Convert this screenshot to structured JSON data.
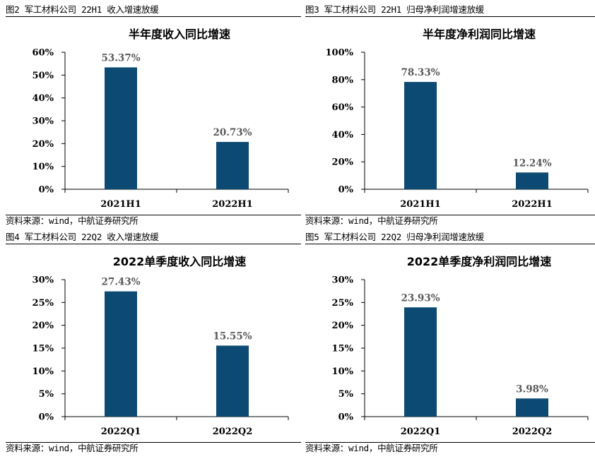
{
  "source_text": "资料来源：wind，中航证券研究所",
  "colors": {
    "bar": "#0d4a73",
    "axis": "#000000",
    "label": "#595959"
  },
  "figures": [
    {
      "caption": "图2  军工材料公司 22H1 收入增速放缓",
      "chart_data": {
        "type": "bar",
        "title": "半年度收入同比增速",
        "categories": [
          "2021H1",
          "2022H1"
        ],
        "values": [
          53.37,
          20.73
        ],
        "data_labels": [
          "53.37%",
          "20.73%"
        ],
        "yticks": [
          "0%",
          "10%",
          "20%",
          "30%",
          "40%",
          "50%",
          "60%"
        ],
        "ylim": [
          0,
          60
        ],
        "xlabel": "",
        "ylabel": "",
        "grid": false
      }
    },
    {
      "caption": "图3  军工材料公司 22H1 归母净利润增速放缓",
      "chart_data": {
        "type": "bar",
        "title": "半年度净利润同比增速",
        "categories": [
          "2021H1",
          "2022H1"
        ],
        "values": [
          78.33,
          12.24
        ],
        "data_labels": [
          "78.33%",
          "12.24%"
        ],
        "yticks": [
          "0%",
          "20%",
          "40%",
          "60%",
          "80%",
          "100%"
        ],
        "ylim": [
          0,
          100
        ],
        "xlabel": "",
        "ylabel": "",
        "grid": false
      }
    },
    {
      "caption": "图4  军工材料公司 22Q2 收入增速放缓",
      "chart_data": {
        "type": "bar",
        "title": "2022单季度收入同比增速",
        "categories": [
          "2022Q1",
          "2022Q2"
        ],
        "values": [
          27.43,
          15.55
        ],
        "data_labels": [
          "27.43%",
          "15.55%"
        ],
        "yticks": [
          "0%",
          "5%",
          "10%",
          "15%",
          "20%",
          "25%",
          "30%"
        ],
        "ylim": [
          0,
          30
        ],
        "xlabel": "",
        "ylabel": "",
        "grid": false
      }
    },
    {
      "caption": "图5  军工材料公司 22Q2 归母净利润增速放缓",
      "chart_data": {
        "type": "bar",
        "title": "2022单季度净利润同比增速",
        "categories": [
          "2022Q1",
          "2022Q2"
        ],
        "values": [
          23.93,
          3.98
        ],
        "data_labels": [
          "23.93%",
          "3.98%"
        ],
        "yticks": [
          "0%",
          "5%",
          "10%",
          "15%",
          "20%",
          "25%",
          "30%"
        ],
        "ylim": [
          0,
          30
        ],
        "xlabel": "",
        "ylabel": "",
        "grid": false
      }
    }
  ]
}
